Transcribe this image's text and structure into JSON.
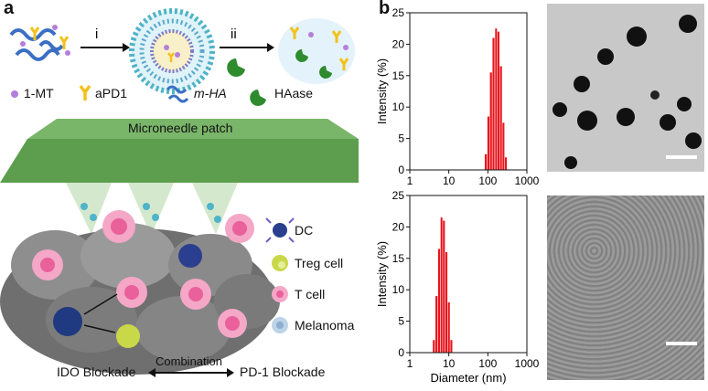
{
  "panel_a": {
    "letter": "a",
    "steps": [
      "i",
      "ii"
    ],
    "legend": [
      "1-MT",
      "aPD1",
      "m-HA",
      "HAase"
    ],
    "patch_label": "Microneedle patch",
    "cell_legend": [
      "DC",
      "Treg cell",
      "T cell",
      "Melanoma"
    ],
    "bottom": {
      "left": "IDO Blockade",
      "center": "Combination",
      "right": "PD-1 Blockade"
    }
  },
  "panel_b": {
    "letter": "b"
  },
  "colors": {
    "bar": "#e8141c",
    "patch": "#6aa84f",
    "cell": "#8c8c8c"
  },
  "chart_data": [
    {
      "type": "bar",
      "ylabel": "Intensity (%)",
      "xlabel": "",
      "xscale": "log",
      "xlim": [
        1,
        1000
      ],
      "ylim": [
        0,
        25
      ],
      "x_ticks": [
        "1",
        "10",
        "100",
        "1000"
      ],
      "y_ticks": [
        0,
        5,
        10,
        15,
        20,
        25
      ],
      "x": [
        90,
        105,
        122,
        142,
        165,
        190,
        220,
        255,
        295
      ],
      "values": [
        2.5,
        8.5,
        15.5,
        21.0,
        22.5,
        22.0,
        16.5,
        7.5,
        2.0
      ]
    },
    {
      "type": "bar",
      "ylabel": "Intensity (%)",
      "xlabel": "Diameter (nm)",
      "xscale": "log",
      "xlim": [
        1,
        1000
      ],
      "ylim": [
        0,
        25
      ],
      "x_ticks": [
        "1",
        "10",
        "100",
        "1000"
      ],
      "y_ticks": [
        0,
        5,
        10,
        15,
        20,
        25
      ],
      "x": [
        4.2,
        4.9,
        5.7,
        6.6,
        7.6,
        8.8,
        10.2,
        11.8
      ],
      "values": [
        2.0,
        9.0,
        16.5,
        21.5,
        21.0,
        16.0,
        8.0,
        2.0
      ]
    }
  ]
}
